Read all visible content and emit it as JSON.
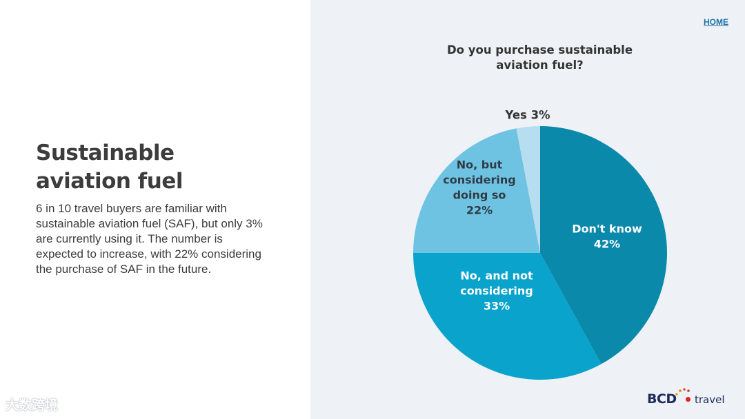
{
  "header": {
    "home_link": "HOME"
  },
  "intro": {
    "title_line1": "Sustainable",
    "title_line2": "aviation fuel",
    "body": "6 in 10 travel buyers are familiar with sustainable aviation fuel (SAF), but only 3% are currently using it. The number is expected to increase, with 22% considering the purchase of SAF in the future."
  },
  "chart_data": {
    "type": "pie",
    "title": "Do you purchase sustainable aviation fuel?",
    "title_lines": [
      "Do you purchase sustainable",
      "aviation fuel?"
    ],
    "slices": [
      {
        "label": "Don't know",
        "label_lines": [
          "Don't know",
          "42%"
        ],
        "value": 42,
        "color": "#0a89ab",
        "text_color": "#ffffff"
      },
      {
        "label": "No, and not considering",
        "label_lines": [
          "No, and not",
          "considering",
          "33%"
        ],
        "value": 33,
        "color": "#0aa3cc",
        "text_color": "#ffffff"
      },
      {
        "label": "No, but considering doing so",
        "label_lines": [
          "No, but",
          "considering",
          "doing so",
          "22%"
        ],
        "value": 22,
        "color": "#6fc3e2",
        "text_color": "#2f3a45"
      },
      {
        "label": "Yes",
        "label_lines": [
          "Yes 3%"
        ],
        "value": 3,
        "color": "#b7def0",
        "text_color": "#333333"
      }
    ],
    "start_angle_deg": 0,
    "direction": "clockwise"
  },
  "logo": {
    "brand": "BCD",
    "suffix": "travel"
  },
  "watermark": {
    "text": "大数跨境"
  },
  "colors": {
    "panel_bg": "#eef2f6",
    "heading": "#3c3c3c",
    "link": "#1b6fa8",
    "brand_navy": "#1f2b5a",
    "brand_red": "#e2231a"
  }
}
